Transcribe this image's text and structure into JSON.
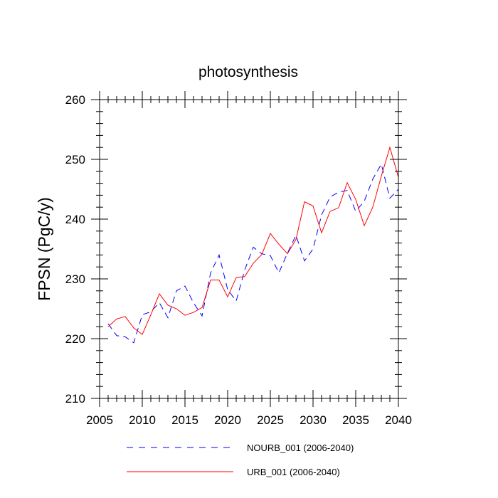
{
  "chart_data": {
    "type": "line",
    "title": "photosynthesis",
    "xlabel": "",
    "ylabel": "FPSN  (PgC/y)",
    "xlim": [
      2005,
      2040
    ],
    "ylim": [
      210,
      260
    ],
    "xticks": [
      2005,
      2010,
      2015,
      2020,
      2025,
      2030,
      2035,
      2040
    ],
    "yticks": [
      210,
      220,
      230,
      240,
      250,
      260
    ],
    "x": [
      2006,
      2007,
      2008,
      2009,
      2010,
      2011,
      2012,
      2013,
      2014,
      2015,
      2016,
      2017,
      2018,
      2019,
      2020,
      2021,
      2022,
      2023,
      2024,
      2025,
      2026,
      2027,
      2028,
      2029,
      2030,
      2031,
      2032,
      2033,
      2034,
      2035,
      2036,
      2037,
      2038,
      2039,
      2040
    ],
    "series": [
      {
        "name": "NOURB_001 (2006-2040)",
        "color": "#0000ff",
        "dash": "dashed",
        "values": [
          222.5,
          220.5,
          220.3,
          219.3,
          224.0,
          224.5,
          226.0,
          223.5,
          228.0,
          228.8,
          226.0,
          223.8,
          231.0,
          234.0,
          228.2,
          226.3,
          231.5,
          235.3,
          234.2,
          233.9,
          231.0,
          234.3,
          237.3,
          233.0,
          235.0,
          240.7,
          243.7,
          244.5,
          244.8,
          241.3,
          243.0,
          246.7,
          249.2,
          243.5,
          245.0
        ]
      },
      {
        "name": "URB_001 (2006-2040)",
        "color": "#ff0000",
        "dash": "solid",
        "values": [
          222.0,
          223.3,
          223.7,
          221.8,
          220.7,
          224.0,
          227.5,
          225.6,
          225.0,
          223.9,
          224.4,
          225.2,
          229.8,
          229.8,
          227.0,
          230.2,
          230.4,
          232.6,
          234.1,
          237.6,
          235.8,
          234.2,
          236.6,
          242.9,
          242.2,
          237.7,
          241.3,
          241.9,
          246.1,
          243.3,
          238.9,
          242.0,
          247.2,
          252.0,
          247.0
        ]
      }
    ],
    "grid": false,
    "legend_position": "bottom"
  }
}
